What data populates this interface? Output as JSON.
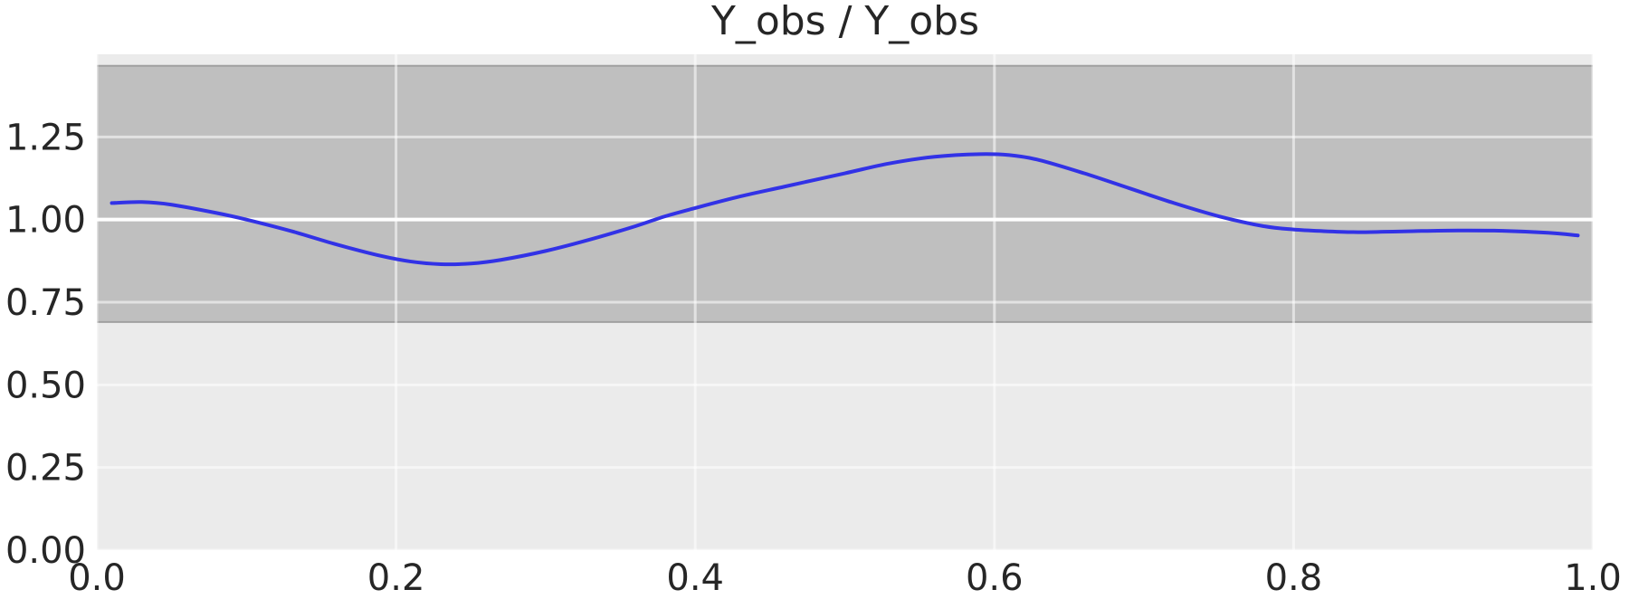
{
  "chart_data": {
    "type": "line",
    "title": "Y_obs / Y_obs",
    "xlabel": "",
    "ylabel": "",
    "xlim": [
      0.0,
      1.0
    ],
    "ylim": [
      0.0,
      1.5
    ],
    "grid": true,
    "x_ticks": [
      {
        "value": 0.0,
        "label": "0.0"
      },
      {
        "value": 0.2,
        "label": "0.2"
      },
      {
        "value": 0.4,
        "label": "0.4"
      },
      {
        "value": 0.6,
        "label": "0.6"
      },
      {
        "value": 0.8,
        "label": "0.8"
      },
      {
        "value": 1.0,
        "label": "1.0"
      }
    ],
    "y_ticks": [
      {
        "value": 0.0,
        "label": "0.00"
      },
      {
        "value": 0.25,
        "label": "0.25"
      },
      {
        "value": 0.5,
        "label": "0.50"
      },
      {
        "value": 0.75,
        "label": "0.75"
      },
      {
        "value": 1.0,
        "label": "1.00"
      },
      {
        "value": 1.25,
        "label": "1.25"
      }
    ],
    "band": {
      "y_min": 0.69,
      "y_max": 1.465,
      "color": "#bfbfbf"
    },
    "reference_line": {
      "y": 1.0,
      "color": "#ffffff"
    },
    "series": [
      {
        "color": "#3232e6",
        "x": [
          0.01,
          0.03,
          0.05,
          0.08,
          0.1,
          0.13,
          0.16,
          0.19,
          0.21,
          0.23,
          0.25,
          0.27,
          0.3,
          0.33,
          0.36,
          0.38,
          0.4,
          0.43,
          0.46,
          0.5,
          0.53,
          0.56,
          0.59,
          0.61,
          0.63,
          0.66,
          0.69,
          0.72,
          0.75,
          0.78,
          0.8,
          0.82,
          0.84,
          0.86,
          0.88,
          0.91,
          0.94,
          0.97,
          0.99
        ],
        "y": [
          1.05,
          1.053,
          1.045,
          1.02,
          1.0,
          0.965,
          0.925,
          0.89,
          0.873,
          0.865,
          0.867,
          0.878,
          0.905,
          0.94,
          0.98,
          1.01,
          1.035,
          1.07,
          1.1,
          1.14,
          1.17,
          1.19,
          1.198,
          1.195,
          1.18,
          1.14,
          1.095,
          1.05,
          1.01,
          0.98,
          0.97,
          0.965,
          0.962,
          0.963,
          0.965,
          0.967,
          0.966,
          0.96,
          0.952
        ]
      }
    ]
  }
}
